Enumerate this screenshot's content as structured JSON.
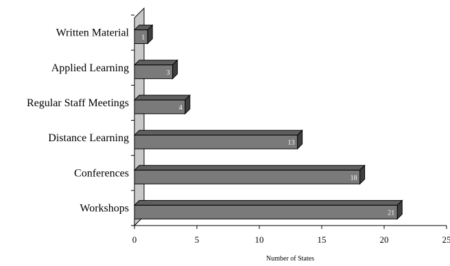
{
  "chart_data": {
    "type": "bar",
    "orientation": "horizontal",
    "style": "3d",
    "categories": [
      "Written Material",
      "Applied Learning",
      "Regular Staff Meetings",
      "Distance Learning",
      "Conferences",
      "Workshops"
    ],
    "values": [
      1,
      3,
      4,
      13,
      18,
      21
    ],
    "data_labels": [
      "1",
      "3",
      "4",
      "13",
      "18",
      "21"
    ],
    "title": "",
    "xlabel": "Number of States",
    "ylabel": "",
    "xlim": [
      0,
      25
    ],
    "xticks": [
      "0",
      "5",
      "10",
      "15",
      "20",
      "25"
    ],
    "grid": false,
    "legend": "none",
    "colors": {
      "bar_front": "#7a7a7a",
      "bar_top": "#5f5f5f",
      "bar_side": "#3f3f3f",
      "wall": "#c8c8c8"
    }
  }
}
